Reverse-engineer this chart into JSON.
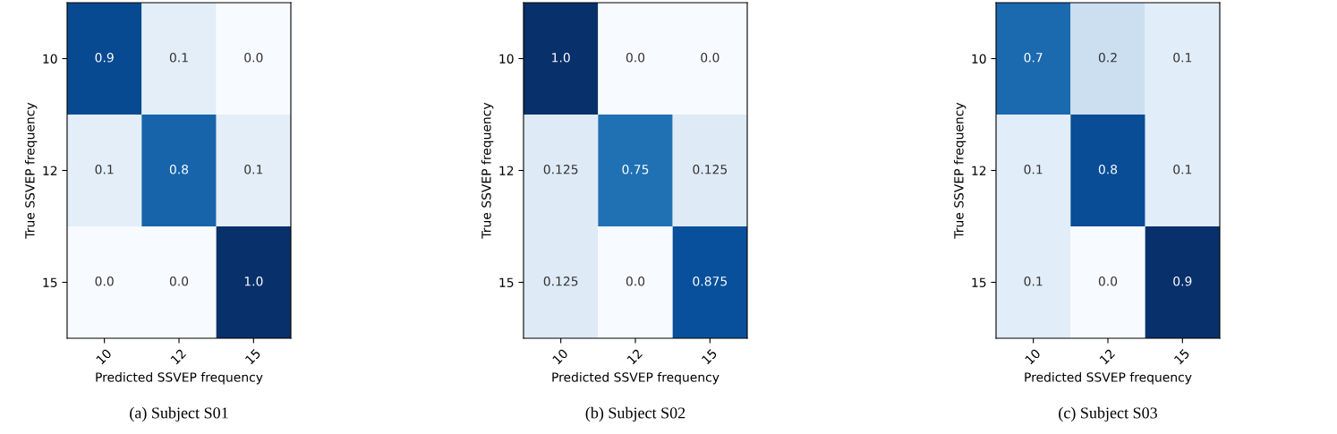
{
  "chart_data": [
    {
      "type": "heatmap",
      "title": "(a) Subject S01",
      "xlabel": "Predicted SSVEP frequency",
      "ylabel": "True SSVEP frequency",
      "categories": [
        "10",
        "12",
        "15"
      ],
      "y_categories": [
        "10",
        "12",
        "15"
      ],
      "data_labels": true,
      "cells": [
        [
          0.9,
          0.1,
          0.0
        ],
        [
          0.1,
          0.8,
          0.1
        ],
        [
          0.0,
          0.0,
          1.0
        ]
      ],
      "cell_labels": [
        [
          "0.9",
          "0.1",
          "0.0"
        ],
        [
          "0.1",
          "0.8",
          "0.1"
        ],
        [
          "0.0",
          "0.0",
          "1.0"
        ]
      ]
    },
    {
      "type": "heatmap",
      "title": "(b) Subject S02",
      "xlabel": "Predicted SSVEP frequency",
      "ylabel": "True SSVEP frequency",
      "categories": [
        "10",
        "12",
        "15"
      ],
      "y_categories": [
        "10",
        "12",
        "15"
      ],
      "data_labels": true,
      "cells": [
        [
          1.0,
          0.0,
          0.0
        ],
        [
          0.125,
          0.75,
          0.125
        ],
        [
          0.125,
          0.0,
          0.875
        ]
      ],
      "cell_labels": [
        [
          "1.0",
          "0.0",
          "0.0"
        ],
        [
          "0.125",
          "0.75",
          "0.125"
        ],
        [
          "0.125",
          "0.0",
          "0.875"
        ]
      ]
    },
    {
      "type": "heatmap",
      "title": "(c) Subject S03",
      "xlabel": "Predicted SSVEP frequency",
      "ylabel": "True SSVEP frequency",
      "categories": [
        "10",
        "12",
        "15"
      ],
      "y_categories": [
        "10",
        "12",
        "15"
      ],
      "data_labels": true,
      "cells": [
        [
          0.7,
          0.2,
          0.1
        ],
        [
          0.1,
          0.8,
          0.1
        ],
        [
          0.1,
          0.0,
          0.9
        ]
      ],
      "cell_labels": [
        [
          "0.7",
          "0.2",
          "0.1"
        ],
        [
          "0.1",
          "0.8",
          "0.1"
        ],
        [
          "0.1",
          "0.0",
          "0.9"
        ]
      ]
    }
  ]
}
